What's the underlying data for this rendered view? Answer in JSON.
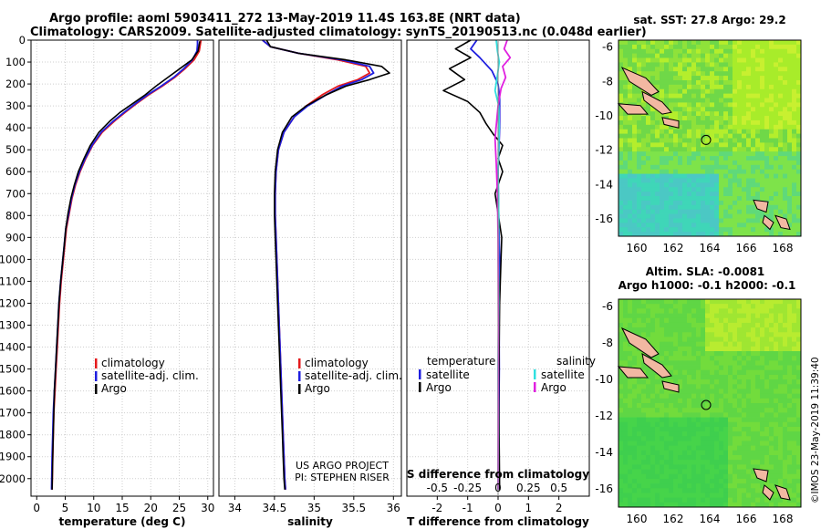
{
  "titles": {
    "line1": "Argo profile: aoml 5903411_272 13-May-2019 11.4S 163.8E (NRT data)",
    "line2": "Climatology: CARS2009. Satellite-adjusted climatology: synTS_20190513.nc (0.048d earlier)"
  },
  "credit": "©IMOS 23-May-2019 11:39:40",
  "colors": {
    "climatology": "#e41a1c",
    "satellite": "#1f1fdf",
    "argo": "#000000",
    "sat_salinity": "#30e0e0",
    "argo_salinity": "#e020e0"
  },
  "chart_data": [
    {
      "type": "line",
      "panel": "temperature",
      "xlabel": "temperature (deg C)",
      "xlim": [
        -1,
        31
      ],
      "xticks": [
        0,
        5,
        10,
        15,
        20,
        25,
        30
      ],
      "ylim": [
        2080,
        0
      ],
      "yticks": [
        0,
        100,
        200,
        300,
        400,
        500,
        600,
        700,
        800,
        900,
        1000,
        1100,
        1200,
        1300,
        1400,
        1500,
        1600,
        1700,
        1800,
        1900,
        2000
      ],
      "legend": {
        "position": "lower-middle",
        "entries": [
          "climatology",
          "satellite-adj. clim.",
          "Argo"
        ]
      },
      "series": [
        {
          "name": "climatology",
          "color": "#e41a1c",
          "x": [
            28.8,
            28.7,
            28.5,
            27.6,
            26.0,
            24.2,
            22.0,
            19.6,
            17.5,
            15.5,
            13.6,
            11.5,
            9.8,
            8.6,
            7.6,
            6.8,
            6.2,
            5.7,
            5.2,
            4.9,
            4.6,
            4.3,
            4.0,
            3.8,
            3.6,
            3.4,
            3.2,
            3.0,
            2.9,
            2.8,
            2.7
          ],
          "y": [
            0,
            20,
            50,
            90,
            130,
            170,
            210,
            250,
            290,
            330,
            370,
            420,
            480,
            540,
            600,
            660,
            720,
            790,
            860,
            940,
            1020,
            1100,
            1200,
            1300,
            1400,
            1500,
            1600,
            1700,
            1800,
            1900,
            2050
          ]
        },
        {
          "name": "satellite-adj. clim.",
          "color": "#1f1fdf",
          "x": [
            28.2,
            28.2,
            28.1,
            27.3,
            25.8,
            24.0,
            21.8,
            19.4,
            17.3,
            15.3,
            13.4,
            11.3,
            9.7,
            8.5,
            7.5,
            6.7,
            6.1,
            5.6,
            5.1,
            4.8,
            4.5,
            4.2,
            3.9,
            3.7,
            3.5,
            3.3,
            3.1,
            2.9,
            2.8,
            2.7,
            2.6
          ],
          "y": [
            0,
            20,
            50,
            90,
            130,
            170,
            210,
            250,
            290,
            330,
            370,
            420,
            480,
            540,
            600,
            660,
            720,
            790,
            860,
            940,
            1020,
            1100,
            1200,
            1300,
            1400,
            1500,
            1600,
            1700,
            1800,
            1900,
            2050
          ]
        },
        {
          "name": "Argo",
          "color": "#000000",
          "x": [
            28.6,
            28.5,
            28.3,
            27.2,
            25.1,
            23.0,
            20.9,
            19.0,
            16.8,
            14.6,
            12.8,
            10.9,
            9.4,
            8.3,
            7.3,
            6.6,
            6.0,
            5.5,
            5.1,
            4.8,
            4.5,
            4.2,
            3.9,
            3.7,
            3.5,
            3.3,
            3.1,
            3.0,
            2.9,
            2.8,
            2.7
          ],
          "y": [
            5,
            20,
            50,
            90,
            130,
            170,
            210,
            250,
            290,
            330,
            370,
            420,
            480,
            540,
            600,
            660,
            720,
            790,
            860,
            940,
            1020,
            1100,
            1200,
            1300,
            1400,
            1500,
            1600,
            1700,
            1800,
            1900,
            2050
          ]
        }
      ]
    },
    {
      "type": "line",
      "panel": "salinity",
      "xlabel": "salinity",
      "xlim": [
        33.8,
        36.1
      ],
      "xticks": [
        34,
        34.5,
        35,
        35.5,
        36
      ],
      "ylim": [
        2080,
        0
      ],
      "legend": {
        "position": "lower-middle",
        "entries": [
          "climatology",
          "satellite-adj. clim.",
          "Argo"
        ]
      },
      "annotations": [
        "US ARGO PROJECT",
        "PI: STEPHEN RISER"
      ],
      "series": [
        {
          "name": "climatology",
          "color": "#e41a1c",
          "x": [
            34.35,
            34.45,
            34.8,
            35.3,
            35.65,
            35.7,
            35.55,
            35.3,
            35.1,
            34.9,
            34.75,
            34.62,
            34.55,
            34.52,
            34.51,
            34.51,
            34.52,
            34.53,
            34.55,
            34.57,
            34.59,
            34.61,
            34.62,
            34.63,
            34.64
          ],
          "y": [
            0,
            30,
            60,
            90,
            120,
            150,
            180,
            210,
            250,
            300,
            350,
            420,
            500,
            600,
            700,
            800,
            900,
            1000,
            1200,
            1400,
            1600,
            1800,
            1900,
            2000,
            2050
          ]
        },
        {
          "name": "satellite-adj. clim.",
          "color": "#1f1fdf",
          "x": [
            34.35,
            34.45,
            34.8,
            35.35,
            35.7,
            35.75,
            35.6,
            35.35,
            35.15,
            34.92,
            34.75,
            34.62,
            34.55,
            34.52,
            34.51,
            34.51,
            34.52,
            34.53,
            34.55,
            34.57,
            34.59,
            34.61,
            34.62,
            34.63,
            34.64
          ],
          "y": [
            0,
            30,
            60,
            90,
            120,
            150,
            180,
            210,
            250,
            300,
            350,
            420,
            500,
            600,
            700,
            800,
            900,
            1000,
            1200,
            1400,
            1600,
            1800,
            1900,
            2000,
            2050
          ]
        },
        {
          "name": "Argo",
          "color": "#000000",
          "x": [
            34.4,
            34.45,
            34.8,
            35.4,
            35.85,
            35.95,
            35.7,
            35.4,
            35.15,
            34.9,
            34.72,
            34.6,
            34.54,
            34.51,
            34.5,
            34.5,
            34.51,
            34.52,
            34.54,
            34.56,
            34.58,
            34.6,
            34.61,
            34.62,
            34.63
          ],
          "y": [
            0,
            30,
            60,
            90,
            120,
            150,
            180,
            210,
            250,
            300,
            350,
            420,
            500,
            600,
            700,
            800,
            900,
            1000,
            1200,
            1400,
            1600,
            1800,
            1900,
            2000,
            2050
          ]
        }
      ]
    },
    {
      "type": "line",
      "panel": "difference",
      "xlabel": "T difference from climatology",
      "top_xlabel": "S difference from climatology",
      "xlim": [
        -3,
        3
      ],
      "xticks": [
        -2,
        -1,
        0,
        1,
        2
      ],
      "top_xticks": [
        "-0.5",
        "-0.25",
        "0",
        "0.25",
        "0.5"
      ],
      "ylim": [
        2080,
        0
      ],
      "legend": {
        "position": "lower-middle",
        "left_title": "temperature",
        "right_title": "salinity",
        "left_entries": [
          "satellite",
          "Argo"
        ],
        "right_entries": [
          "satellite",
          "Argo"
        ]
      },
      "series": [
        {
          "name": "temperature satellite",
          "color": "#1f1fdf",
          "x": [
            -0.7,
            -0.9,
            -0.6,
            -0.2,
            0.0,
            0.05,
            0.05,
            0.0,
            0.02,
            0.05,
            0.03,
            0.04,
            0.02,
            0.02
          ],
          "y": [
            0,
            40,
            80,
            140,
            200,
            260,
            400,
            600,
            800,
            1000,
            1200,
            1500,
            1800,
            2050
          ]
        },
        {
          "name": "temperature Argo",
          "color": "#000000",
          "x": [
            -0.9,
            -1.4,
            -0.9,
            -1.6,
            -1.1,
            -1.8,
            -1.0,
            -0.6,
            -0.4,
            -0.15,
            0.15,
            0.0,
            0.15,
            -0.1,
            0.12,
            0.05,
            0.02,
            0.05
          ],
          "y": [
            0,
            40,
            80,
            130,
            180,
            230,
            280,
            330,
            380,
            430,
            480,
            540,
            600,
            700,
            900,
            1200,
            1600,
            2050
          ]
        },
        {
          "name": "salinity satellite",
          "color": "#30e0e0",
          "x": [
            -0.06,
            -0.02,
            0.04,
            -0.02,
            -0.1,
            0.02,
            0.04,
            0.0,
            0.02,
            0.01,
            0.02,
            0.0,
            0.01,
            0.0
          ],
          "y": [
            0,
            50,
            100,
            160,
            230,
            300,
            400,
            600,
            800,
            1000,
            1200,
            1500,
            1800,
            2050
          ]
        },
        {
          "name": "salinity Argo",
          "color": "#e020e0",
          "x": [
            0.3,
            0.2,
            0.4,
            0.15,
            0.25,
            0.1,
            0.0,
            -0.1,
            -0.06,
            -0.02,
            0.0,
            0.01,
            0.0
          ],
          "y": [
            0,
            40,
            80,
            120,
            170,
            220,
            300,
            450,
            560,
            700,
            900,
            1300,
            2050
          ]
        }
      ]
    },
    {
      "type": "heatmap",
      "panel": "sst-map",
      "title": "sat. SST: 27.8 Argo: 29.2",
      "xticks": [
        160,
        162,
        164,
        166,
        168
      ],
      "yticks": [
        -6,
        -8,
        -10,
        -12,
        -14,
        -16
      ],
      "xlim": [
        159,
        169
      ],
      "ylim": [
        -17,
        -5.6
      ],
      "marker": {
        "lon": 163.8,
        "lat": -11.4
      }
    },
    {
      "type": "heatmap",
      "panel": "sla-map",
      "title": "Altim. SLA: -0.0081",
      "subtitle": "Argo h1000: -0.1 h2000: -0.1",
      "xticks": [
        160,
        162,
        164,
        166,
        168
      ],
      "yticks": [
        -6,
        -8,
        -10,
        -12,
        -14,
        -16
      ],
      "xlim": [
        159,
        169
      ],
      "ylim": [
        -17,
        -5.6
      ],
      "marker": {
        "lon": 163.8,
        "lat": -11.4
      }
    }
  ]
}
